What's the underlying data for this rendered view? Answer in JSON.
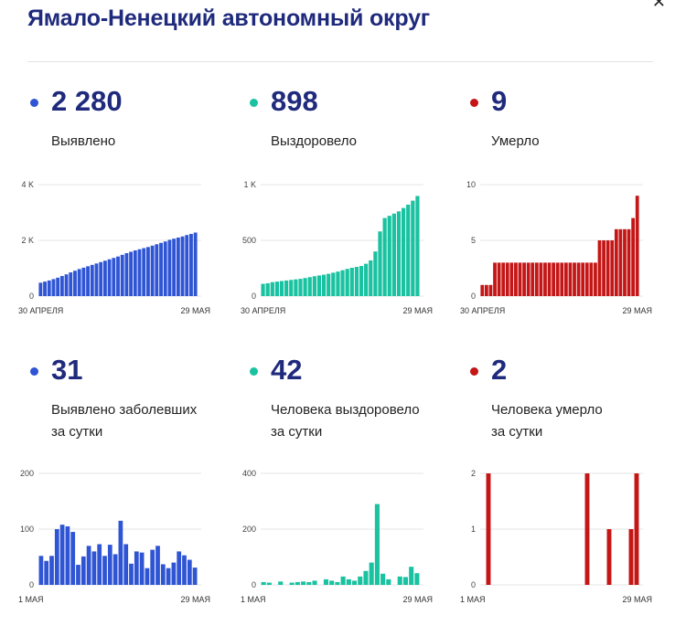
{
  "title": "Ямало-Ненецкий автономный округ",
  "colors": {
    "blue": "#2f55d4",
    "green": "#19c2a0",
    "red": "#c41616",
    "title": "#1f2a7c"
  },
  "blocks": [
    {
      "value": "2 280",
      "label": "Выявлено",
      "color": "#2f55d4"
    },
    {
      "value": "898",
      "label": "Выздоровело",
      "color": "#19c2a0"
    },
    {
      "value": "9",
      "label": "Умерло",
      "color": "#c41616"
    },
    {
      "value": "31",
      "label": "Выявлено заболевших\nза сутки",
      "color": "#2f55d4"
    },
    {
      "value": "42",
      "label": "Человека выздоровело\nза сутки",
      "color": "#19c2a0"
    },
    {
      "value": "2",
      "label": "Человека умерло\nза сутки",
      "color": "#c41616"
    }
  ],
  "chart_data": [
    {
      "type": "bar",
      "color": "#2f55d4",
      "ylim": [
        0,
        4000
      ],
      "yticks": [
        0,
        2000,
        4000
      ],
      "ytick_labels": [
        "0",
        "2 K",
        "4 K"
      ],
      "xtick_labels": [
        "30 АПРЕЛЯ",
        "29 МАЯ"
      ],
      "values": [
        480,
        520,
        560,
        610,
        660,
        720,
        780,
        850,
        910,
        970,
        1020,
        1070,
        1120,
        1170,
        1220,
        1270,
        1320,
        1370,
        1420,
        1480,
        1540,
        1590,
        1640,
        1680,
        1720,
        1760,
        1810,
        1860,
        1910,
        1960,
        2020,
        2060,
        2100,
        2140,
        2190,
        2230,
        2280
      ]
    },
    {
      "type": "bar",
      "color": "#19c2a0",
      "ylim": [
        0,
        1000
      ],
      "yticks": [
        0,
        500,
        1000
      ],
      "ytick_labels": [
        "0",
        "500",
        "1 K"
      ],
      "xtick_labels": [
        "30 АПРЕЛЯ",
        "29 МАЯ"
      ],
      "values": [
        110,
        115,
        125,
        130,
        135,
        140,
        145,
        150,
        155,
        162,
        170,
        178,
        185,
        192,
        200,
        210,
        220,
        232,
        244,
        254,
        262,
        270,
        290,
        320,
        400,
        580,
        700,
        720,
        740,
        760,
        790,
        820,
        856,
        898
      ]
    },
    {
      "type": "bar",
      "color": "#c41616",
      "ylim": [
        0,
        10
      ],
      "yticks": [
        0,
        5,
        10
      ],
      "ytick_labels": [
        "0",
        "5",
        "10"
      ],
      "xtick_labels": [
        "30 АПРЕЛЯ",
        "29 МАЯ"
      ],
      "values": [
        1,
        1,
        1,
        3,
        3,
        3,
        3,
        3,
        3,
        3,
        3,
        3,
        3,
        3,
        3,
        3,
        3,
        3,
        3,
        3,
        3,
        3,
        3,
        3,
        3,
        3,
        3,
        3,
        5,
        5,
        5,
        5,
        6,
        6,
        6,
        6,
        7,
        9
      ]
    },
    {
      "type": "bar",
      "color": "#2f55d4",
      "ylim": [
        0,
        200
      ],
      "yticks": [
        0,
        100,
        200
      ],
      "ytick_labels": [
        "0",
        "100",
        "200"
      ],
      "xtick_labels": [
        "1 МАЯ",
        "29 МАЯ"
      ],
      "values": [
        52,
        43,
        52,
        100,
        108,
        105,
        95,
        36,
        51,
        70,
        60,
        73,
        52,
        72,
        55,
        115,
        73,
        38,
        60,
        58,
        30,
        63,
        70,
        37,
        30,
        40,
        60,
        53,
        45,
        31
      ]
    },
    {
      "type": "bar",
      "color": "#19c2a0",
      "ylim": [
        0,
        400
      ],
      "yticks": [
        0,
        200,
        400
      ],
      "ytick_labels": [
        "0",
        "200",
        "400"
      ],
      "xtick_labels": [
        "1 МАЯ",
        "29 МАЯ"
      ],
      "values": [
        10,
        8,
        0,
        12,
        0,
        8,
        10,
        12,
        10,
        15,
        0,
        20,
        15,
        10,
        30,
        20,
        15,
        30,
        50,
        80,
        290,
        40,
        20,
        0,
        30,
        28,
        65,
        42
      ]
    },
    {
      "type": "bar",
      "color": "#c41616",
      "ylim": [
        0,
        2
      ],
      "yticks": [
        0,
        1,
        2
      ],
      "ytick_labels": [
        "0",
        "1",
        "2"
      ],
      "xtick_labels": [
        "1 МАЯ",
        "29 МАЯ"
      ],
      "values": [
        0,
        2,
        0,
        0,
        0,
        0,
        0,
        0,
        0,
        0,
        0,
        0,
        0,
        0,
        0,
        0,
        0,
        0,
        0,
        2,
        0,
        0,
        0,
        1,
        0,
        0,
        0,
        1,
        2
      ]
    }
  ]
}
